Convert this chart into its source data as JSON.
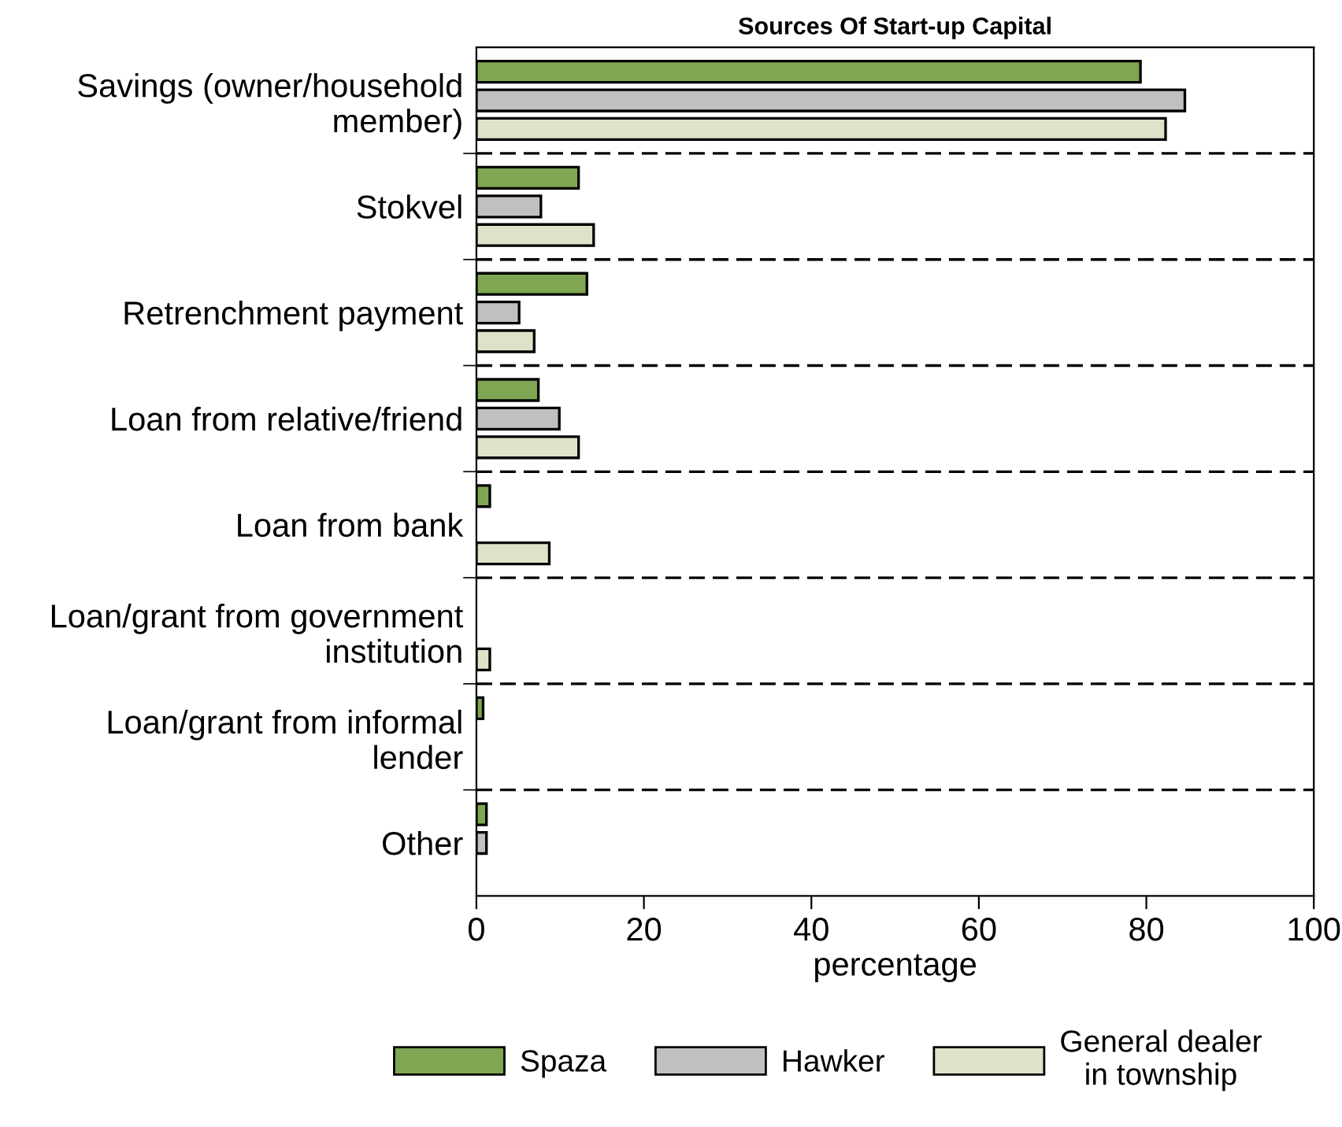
{
  "chart_data": {
    "type": "bar",
    "orientation": "horizontal",
    "title": "Sources Of Start-up Capital",
    "xlabel": "percentage",
    "categories": [
      "Savings (owner/household\nmember)",
      "Stokvel",
      "Retrenchment payment",
      "Loan from relative/friend",
      "Loan from bank",
      "Loan/grant from government\ninstitution",
      "Loan/grant from informal\nlender",
      "Other"
    ],
    "series": [
      {
        "name": "Spaza",
        "color": "#7ea653",
        "values": [
          79.3,
          12.2,
          13.2,
          7.4,
          1.6,
          null,
          0.8,
          1.2
        ]
      },
      {
        "name": "Hawker",
        "color": "#c0c0c0",
        "values": [
          84.6,
          7.7,
          5.1,
          9.9,
          null,
          null,
          null,
          1.2
        ]
      },
      {
        "name": "General dealer\nin township",
        "color": "#dde3c8",
        "values": [
          82.3,
          14.0,
          6.9,
          12.2,
          8.7,
          1.6,
          null,
          null
        ]
      }
    ],
    "xlim": [
      0,
      100
    ],
    "xticks": [
      0,
      20,
      40,
      60,
      80,
      100
    ],
    "grid": "y",
    "line_style": "dashed",
    "legend": "bottom"
  }
}
